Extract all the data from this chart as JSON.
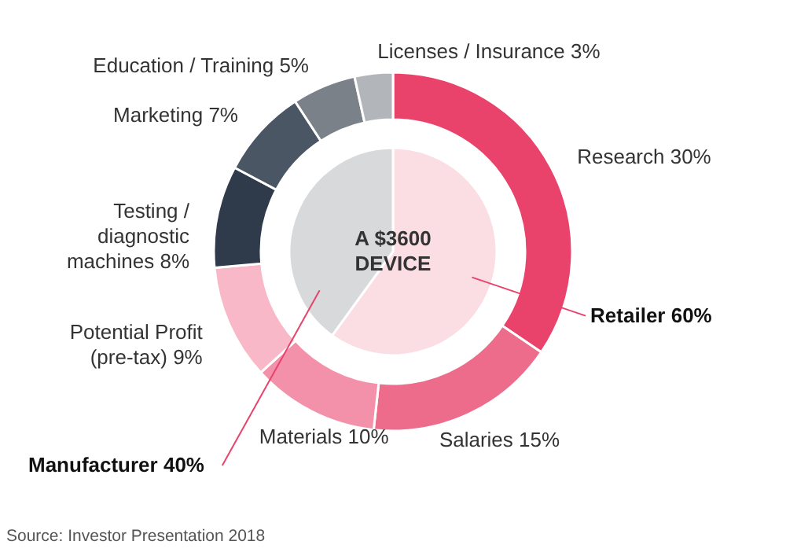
{
  "chart_data": [
    {
      "type": "donut",
      "categories": [
        "Research",
        "Salaries",
        "Materials",
        "Potential Profit (pre-tax)",
        "Testing / diagnostic machines",
        "Marketing",
        "Education / Training",
        "Licenses / Insurance"
      ],
      "values": [
        30,
        15,
        10,
        9,
        8,
        7,
        5,
        3
      ],
      "value_labels": [
        "30%",
        "15%",
        "10%",
        "9%",
        "8%",
        "7%",
        "5%",
        "3%"
      ],
      "colors": [
        "#e9436b",
        "#ee6c8b",
        "#f391aa",
        "#f8b8c8",
        "#2f3a4b",
        "#4b5665",
        "#7b8189",
        "#b2b5ba"
      ],
      "annotations": [
        "Source: Investor Presentation 2018"
      ]
    },
    {
      "type": "pie",
      "categories": [
        "Retailer",
        "Manufacturer"
      ],
      "values": [
        60,
        40
      ],
      "value_labels": [
        "60%",
        "40%"
      ],
      "colors": [
        "#fbdde4",
        "#d8d9db"
      ],
      "annotations": [
        "A $3600\nDEVICE"
      ]
    }
  ]
}
